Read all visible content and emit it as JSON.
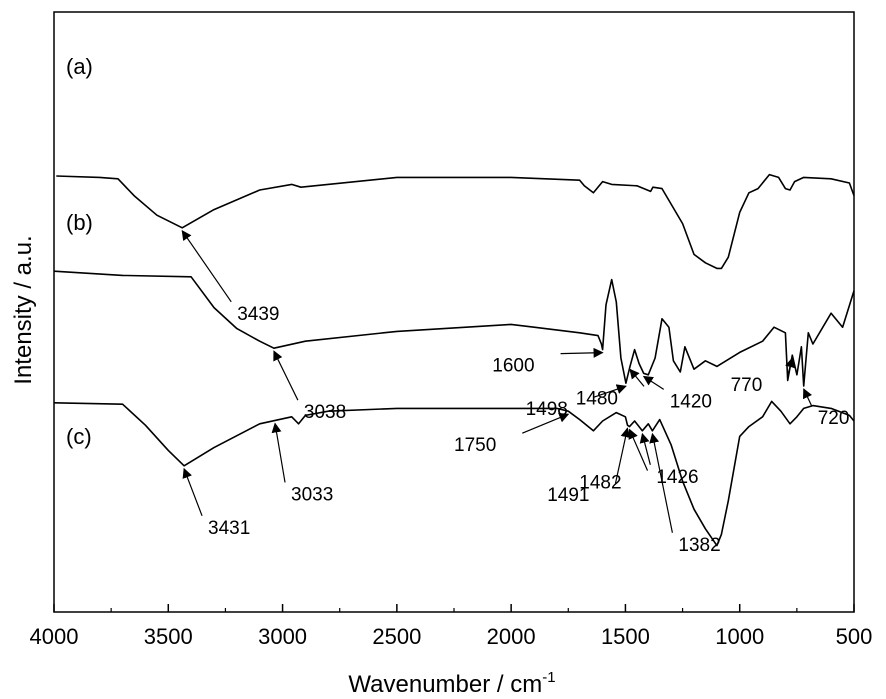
{
  "chart_data": {
    "type": "line",
    "xlabel": "Wavenumber / cm",
    "xlabel_sup": "-1",
    "ylabel": "Intensity / a.u.",
    "xlim": [
      4000,
      500
    ],
    "x_ticks": [
      "4000",
      "3500",
      "3000",
      "2500",
      "2000",
      "1500",
      "1000",
      "500"
    ],
    "y_ticks": [],
    "grid": false,
    "legend": "none",
    "series": [
      {
        "name": "(a)",
        "x": [
          3990,
          3800,
          3720,
          3650,
          3550,
          3439,
          3300,
          3100,
          2960,
          2920,
          2500,
          2000,
          1700,
          1680,
          1640,
          1600,
          1560,
          1450,
          1390,
          1380,
          1340,
          1250,
          1200,
          1150,
          1100,
          1080,
          1050,
          1000,
          960,
          920,
          870,
          830,
          800,
          780,
          760,
          720,
          600,
          520,
          500
        ],
        "y": [
          8.0,
          7.95,
          7.9,
          7.3,
          6.6,
          6.15,
          6.8,
          7.5,
          7.7,
          7.6,
          7.95,
          7.95,
          7.85,
          7.65,
          7.4,
          7.8,
          7.7,
          7.65,
          7.45,
          7.6,
          7.55,
          6.3,
          5.2,
          4.9,
          4.7,
          4.7,
          5.1,
          6.7,
          7.4,
          7.55,
          8.05,
          7.95,
          7.55,
          7.5,
          7.8,
          7.95,
          7.9,
          7.75,
          7.3
        ]
      },
      {
        "name": "(b)",
        "x": [
          4000,
          3700,
          3400,
          3300,
          3200,
          3100,
          3038,
          2900,
          2500,
          2000,
          1900,
          1700,
          1620,
          1605,
          1600,
          1585,
          1560,
          1540,
          1520,
          1498,
          1480,
          1460,
          1440,
          1420,
          1400,
          1370,
          1340,
          1310,
          1290,
          1260,
          1240,
          1200,
          1150,
          1100,
          1000,
          900,
          850,
          800,
          790,
          770,
          750,
          730,
          720,
          700,
          680,
          600,
          550,
          500
        ],
        "y": [
          4.6,
          4.45,
          4.4,
          3.3,
          2.55,
          2.1,
          1.85,
          2.1,
          2.45,
          2.7,
          2.6,
          2.4,
          2.3,
          2.0,
          1.8,
          3.4,
          4.3,
          3.5,
          1.5,
          0.6,
          1.2,
          1.8,
          1.3,
          0.95,
          0.9,
          1.5,
          2.9,
          2.6,
          1.4,
          1.0,
          1.9,
          1.1,
          1.4,
          1.2,
          1.7,
          2.1,
          2.6,
          2.4,
          0.7,
          1.6,
          0.9,
          1.9,
          0.5,
          2.4,
          2.0,
          3.1,
          2.6,
          3.9
        ]
      },
      {
        "name": "(c)",
        "x": [
          4000,
          3700,
          3600,
          3500,
          3431,
          3300,
          3100,
          2960,
          2930,
          2900,
          2800,
          2500,
          2000,
          1800,
          1750,
          1700,
          1640,
          1600,
          1540,
          1500,
          1491,
          1482,
          1460,
          1426,
          1400,
          1382,
          1350,
          1300,
          1250,
          1200,
          1150,
          1100,
          1080,
          1050,
          1000,
          960,
          900,
          860,
          820,
          780,
          750,
          720,
          680,
          600,
          520,
          500
        ],
        "y": [
          -0.1,
          -0.15,
          -0.9,
          -1.8,
          -2.35,
          -1.7,
          -0.85,
          -0.6,
          -0.85,
          -0.55,
          -0.4,
          -0.3,
          -0.3,
          -0.3,
          -0.4,
          -0.7,
          -1.1,
          -0.75,
          -0.45,
          -0.6,
          -0.9,
          -0.95,
          -0.75,
          -1.1,
          -0.85,
          -1.1,
          -0.7,
          -1.6,
          -2.9,
          -3.9,
          -4.6,
          -5.2,
          -4.8,
          -3.6,
          -1.3,
          -0.95,
          -0.6,
          -0.05,
          -0.4,
          -0.85,
          -0.6,
          -0.3,
          -0.2,
          -0.3,
          -0.55,
          -0.75
        ]
      }
    ],
    "panel_labels": [
      "(a)",
      "(b)",
      "(c)"
    ],
    "annotations": [
      {
        "text": "3439",
        "series": 0,
        "at": 3439
      },
      {
        "text": "3038",
        "series": 1,
        "at": 3038
      },
      {
        "text": "1600",
        "series": 1,
        "at": 1600
      },
      {
        "text": "1498",
        "series": 1,
        "at": 1498
      },
      {
        "text": "1480",
        "series": 1,
        "at": 1480
      },
      {
        "text": "1420",
        "series": 1,
        "at": 1420
      },
      {
        "text": "770",
        "series": 1,
        "at": 770
      },
      {
        "text": "720",
        "series": 1,
        "at": 720
      },
      {
        "text": "3431",
        "series": 2,
        "at": 3431
      },
      {
        "text": "3033",
        "series": 2,
        "at": 3033
      },
      {
        "text": "1750",
        "series": 2,
        "at": 1750
      },
      {
        "text": "1491",
        "series": 2,
        "at": 1491
      },
      {
        "text": "1482",
        "series": 2,
        "at": 1482
      },
      {
        "text": "1426",
        "series": 2,
        "at": 1426
      },
      {
        "text": "1382",
        "series": 2,
        "at": 1382
      }
    ]
  }
}
